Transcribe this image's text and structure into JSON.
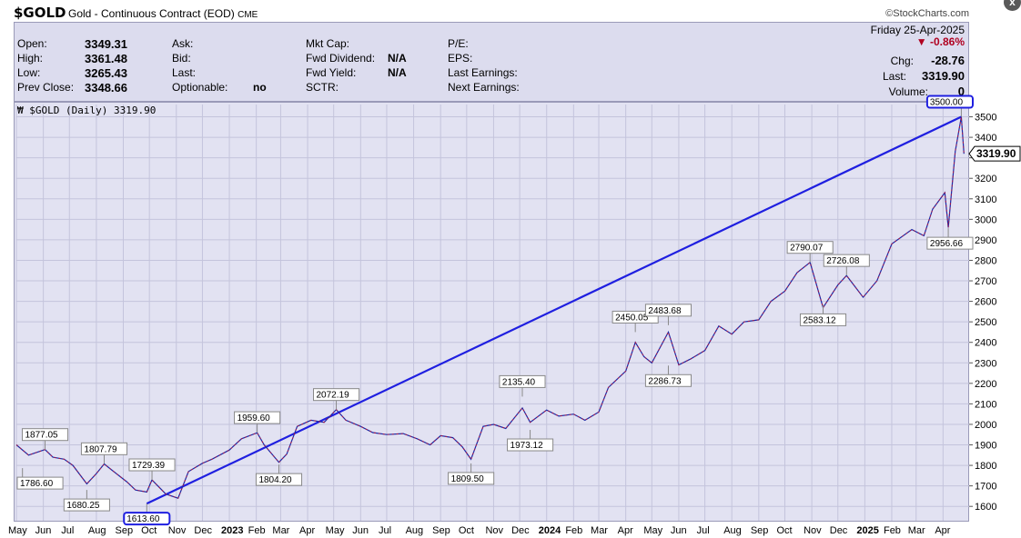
{
  "header": {
    "symbol": "$GOLD",
    "description": "Gold - Continuous Contract (EOD)",
    "exchange": "CME",
    "brand": "©StockCharts.com",
    "close_glyph": "x"
  },
  "quote": {
    "date": "Friday  25-Apr-2025",
    "open_label": "Open:",
    "open": "3349.31",
    "high_label": "High:",
    "high": "3361.48",
    "low_label": "Low:",
    "low": "3265.43",
    "prev_label": "Prev Close:",
    "prev": "3348.66",
    "ask_label": "Ask:",
    "bid_label": "Bid:",
    "last_label2": "Last:",
    "optionable_label": "Optionable:",
    "optionable": "no",
    "mktcap_label": "Mkt Cap:",
    "fwd_div_label": "Fwd Dividend:",
    "fwd_div": "N/A",
    "fwd_yield_label": "Fwd Yield:",
    "fwd_yield": "N/A",
    "sctr_label": "SCTR:",
    "pe_label": "P/E:",
    "eps_label": "EPS:",
    "last_earn_label": "Last Earnings:",
    "next_earn_label": "Next Earnings:",
    "pct_change": "▼ -0.86%",
    "chg_label": "Chg:",
    "chg": "-28.76",
    "last_label": "Last:",
    "last": "3319.90",
    "volume_label": "Volume:",
    "volume": "0"
  },
  "chart_data": {
    "type": "line",
    "title": "$GOLD (Daily) 3319.90",
    "last_value": "3319.90",
    "ylim": [
      1530,
      3560
    ],
    "yticks": [
      "1600",
      "1700",
      "1800",
      "1900",
      "2000",
      "2100",
      "2200",
      "2300",
      "2400",
      "2500",
      "2600",
      "2700",
      "2800",
      "2900",
      "3000",
      "3100",
      "3200",
      "3300",
      "3400",
      "3500"
    ],
    "x_start": "2022-05-01",
    "x_end": "2025-05-01",
    "months": [
      {
        "label": "May",
        "date": "2022-05-01",
        "bold": false
      },
      {
        "label": "Jun",
        "date": "2022-06-01",
        "bold": false
      },
      {
        "label": "Jul",
        "date": "2022-07-01",
        "bold": false
      },
      {
        "label": "Aug",
        "date": "2022-08-01",
        "bold": false
      },
      {
        "label": "Sep",
        "date": "2022-09-01",
        "bold": false
      },
      {
        "label": "Oct",
        "date": "2022-10-01",
        "bold": false
      },
      {
        "label": "Nov",
        "date": "2022-11-01",
        "bold": false
      },
      {
        "label": "Dec",
        "date": "2022-12-01",
        "bold": false
      },
      {
        "label": "2023",
        "date": "2023-01-01",
        "bold": true
      },
      {
        "label": "Feb",
        "date": "2023-02-01",
        "bold": false
      },
      {
        "label": "Mar",
        "date": "2023-03-01",
        "bold": false
      },
      {
        "label": "Apr",
        "date": "2023-04-01",
        "bold": false
      },
      {
        "label": "May",
        "date": "2023-05-01",
        "bold": false
      },
      {
        "label": "Jun",
        "date": "2023-06-01",
        "bold": false
      },
      {
        "label": "Jul",
        "date": "2023-07-01",
        "bold": false
      },
      {
        "label": "Aug",
        "date": "2023-08-01",
        "bold": false
      },
      {
        "label": "Sep",
        "date": "2023-09-01",
        "bold": false
      },
      {
        "label": "Oct",
        "date": "2023-10-01",
        "bold": false
      },
      {
        "label": "Nov",
        "date": "2023-11-01",
        "bold": false
      },
      {
        "label": "Dec",
        "date": "2023-12-01",
        "bold": false
      },
      {
        "label": "2024",
        "date": "2024-01-01",
        "bold": true
      },
      {
        "label": "Feb",
        "date": "2024-02-01",
        "bold": false
      },
      {
        "label": "Mar",
        "date": "2024-03-01",
        "bold": false
      },
      {
        "label": "Apr",
        "date": "2024-04-01",
        "bold": false
      },
      {
        "label": "May",
        "date": "2024-05-01",
        "bold": false
      },
      {
        "label": "Jun",
        "date": "2024-06-01",
        "bold": false
      },
      {
        "label": "Jul",
        "date": "2024-07-01",
        "bold": false
      },
      {
        "label": "Aug",
        "date": "2024-08-01",
        "bold": false
      },
      {
        "label": "Sep",
        "date": "2024-09-01",
        "bold": false
      },
      {
        "label": "Oct",
        "date": "2024-10-01",
        "bold": false
      },
      {
        "label": "Nov",
        "date": "2024-11-01",
        "bold": false
      },
      {
        "label": "Dec",
        "date": "2024-12-01",
        "bold": false
      },
      {
        "label": "2025",
        "date": "2025-01-01",
        "bold": true
      },
      {
        "label": "Feb",
        "date": "2025-02-01",
        "bold": false
      },
      {
        "label": "Mar",
        "date": "2025-03-01",
        "bold": false
      },
      {
        "label": "Apr",
        "date": "2025-04-01",
        "bold": false
      }
    ],
    "series": [
      {
        "x": [
          "2022-05-01",
          "2022-05-15",
          "2022-06-03",
          "2022-06-12",
          "2022-06-25",
          "2022-07-05",
          "2022-07-21",
          "2022-08-01",
          "2022-08-10",
          "2022-08-18",
          "2022-08-27",
          "2022-09-05",
          "2022-09-15",
          "2022-09-28",
          "2022-10-04",
          "2022-10-20",
          "2022-11-03",
          "2022-11-15",
          "2022-12-01",
          "2022-12-12",
          "2023-01-01",
          "2023-01-15",
          "2023-02-02",
          "2023-02-10",
          "2023-02-27",
          "2023-03-08",
          "2023-03-20",
          "2023-04-05",
          "2023-04-20",
          "2023-05-04",
          "2023-05-15",
          "2023-06-01",
          "2023-06-15",
          "2023-07-01",
          "2023-07-20",
          "2023-08-05",
          "2023-08-20",
          "2023-09-01",
          "2023-09-15",
          "2023-09-26",
          "2023-10-06",
          "2023-10-20",
          "2023-11-01",
          "2023-11-15",
          "2023-12-04",
          "2023-12-13",
          "2024-01-01",
          "2024-01-15",
          "2024-02-01",
          "2024-02-14",
          "2024-03-01",
          "2024-03-12",
          "2024-04-01",
          "2024-04-12",
          "2024-04-22",
          "2024-05-01",
          "2024-05-20",
          "2024-06-01",
          "2024-06-15",
          "2024-07-01",
          "2024-07-17",
          "2024-08-01",
          "2024-08-15",
          "2024-09-01",
          "2024-09-15",
          "2024-10-01",
          "2024-10-15",
          "2024-10-30",
          "2024-11-14",
          "2024-12-01",
          "2024-12-11",
          "2024-12-30",
          "2025-01-15",
          "2025-02-01",
          "2025-02-24",
          "2025-03-10",
          "2025-03-20",
          "2025-04-03",
          "2025-04-07",
          "2025-04-15",
          "2025-04-22",
          "2025-04-25"
        ],
        "y": [
          1900,
          1850,
          1877,
          1840,
          1830,
          1800,
          1710,
          1760,
          1807,
          1780,
          1750,
          1720,
          1680,
          1670,
          1729,
          1660,
          1640,
          1770,
          1810,
          1830,
          1875,
          1930,
          1959,
          1900,
          1815,
          1855,
          1990,
          2020,
          2010,
          2072,
          2020,
          1990,
          1960,
          1950,
          1955,
          1930,
          1900,
          1945,
          1935,
          1890,
          1830,
          1990,
          2000,
          1980,
          2080,
          2010,
          2070,
          2040,
          2050,
          2020,
          2060,
          2180,
          2260,
          2400,
          2330,
          2300,
          2450,
          2290,
          2320,
          2360,
          2480,
          2440,
          2500,
          2510,
          2600,
          2650,
          2740,
          2790,
          2570,
          2680,
          2726,
          2620,
          2700,
          2880,
          2950,
          2920,
          3050,
          3130,
          2960,
          3330,
          3500,
          3319.9
        ]
      }
    ],
    "trendline": {
      "from": {
        "x": "2022-09-28",
        "y": 1613.6
      },
      "to": {
        "x": "2025-04-22",
        "y": 3500.0
      }
    },
    "annotations": [
      {
        "x": "2022-06-03",
        "y": 1877.05,
        "label": "1877.05",
        "pos": "above"
      },
      {
        "x": "2022-05-08",
        "y": 1786.6,
        "label": "1786.60",
        "pos": "below"
      },
      {
        "x": "2022-08-10",
        "y": 1807.79,
        "label": "1807.79",
        "pos": "above"
      },
      {
        "x": "2022-07-21",
        "y": 1680.25,
        "label": "1680.25",
        "pos": "below"
      },
      {
        "x": "2022-10-04",
        "y": 1729.39,
        "label": "1729.39",
        "pos": "above"
      },
      {
        "x": "2022-09-28",
        "y": 1613.6,
        "label": "1613.60",
        "pos": "below",
        "highlight": true
      },
      {
        "x": "2023-02-02",
        "y": 1959.6,
        "label": "1959.60",
        "pos": "above"
      },
      {
        "x": "2023-02-27",
        "y": 1804.2,
        "label": "1804.20",
        "pos": "below"
      },
      {
        "x": "2023-05-04",
        "y": 2072.19,
        "label": "2072.19",
        "pos": "above"
      },
      {
        "x": "2023-10-06",
        "y": 1809.5,
        "label": "1809.50",
        "pos": "below"
      },
      {
        "x": "2023-12-04",
        "y": 2135.4,
        "label": "2135.40",
        "pos": "above"
      },
      {
        "x": "2023-12-13",
        "y": 1973.12,
        "label": "1973.12",
        "pos": "below"
      },
      {
        "x": "2024-04-12",
        "y": 2450.05,
        "label": "2450.05",
        "pos": "above"
      },
      {
        "x": "2024-05-20",
        "y": 2286.73,
        "label": "2286.73",
        "pos": "below"
      },
      {
        "x": "2024-05-20",
        "y": 2483.68,
        "label": "2483.68",
        "pos": "above"
      },
      {
        "x": "2024-10-30",
        "y": 2790.07,
        "label": "2790.07",
        "pos": "above"
      },
      {
        "x": "2024-11-14",
        "y": 2583.12,
        "label": "2583.12",
        "pos": "below"
      },
      {
        "x": "2024-12-11",
        "y": 2726.08,
        "label": "2726.08",
        "pos": "above"
      },
      {
        "x": "2025-04-07",
        "y": 2956.66,
        "label": "2956.66",
        "pos": "below"
      },
      {
        "x": "2025-04-22",
        "y": 3500.0,
        "label": "3500.00",
        "pos": "above",
        "highlight": true
      }
    ]
  }
}
